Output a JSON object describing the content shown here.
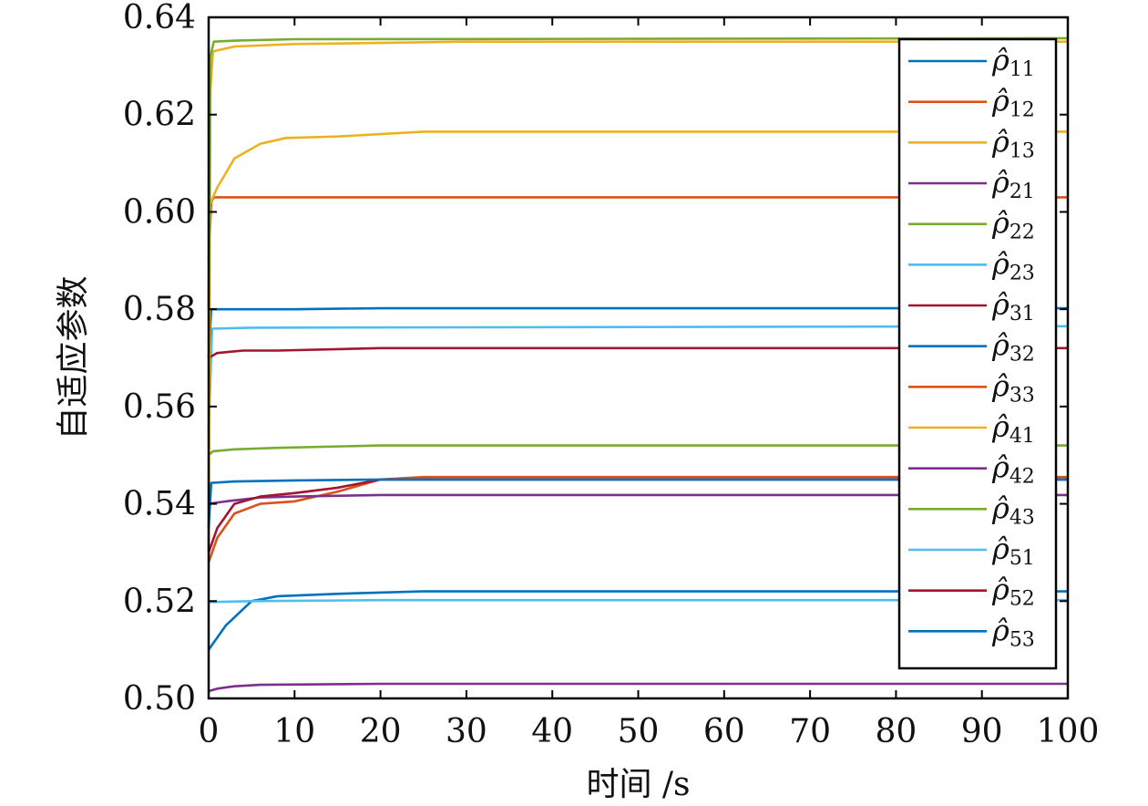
{
  "chart_data": {
    "type": "line",
    "title": "",
    "xlabel": "时间 /s",
    "ylabel": "自适应参数",
    "xlim": [
      0,
      100
    ],
    "ylim": [
      0.5,
      0.64
    ],
    "xticks": [
      "0",
      "10",
      "20",
      "30",
      "40",
      "50",
      "60",
      "70",
      "80",
      "90",
      "100"
    ],
    "yticks": [
      "0.50",
      "0.52",
      "0.54",
      "0.56",
      "0.58",
      "0.60",
      "0.62",
      "0.64"
    ],
    "grid": false,
    "legend_position": "top-right",
    "series": [
      {
        "name": "ρ̂11",
        "sub": "11",
        "color": "#0072BD",
        "x": [
          0,
          2,
          5,
          8,
          15,
          25,
          100
        ],
        "y": [
          0.51,
          0.515,
          0.52,
          0.521,
          0.5215,
          0.522,
          0.522
        ]
      },
      {
        "name": "ρ̂12",
        "sub": "12",
        "color": "#D95319",
        "x": [
          0,
          0.3,
          0.6,
          10,
          100
        ],
        "y": [
          0.59,
          0.602,
          0.603,
          0.603,
          0.603
        ]
      },
      {
        "name": "ρ̂13",
        "sub": "13",
        "color": "#EDB120",
        "x": [
          0,
          1,
          3,
          6,
          9,
          15,
          25,
          100
        ],
        "y": [
          0.601,
          0.605,
          0.611,
          0.614,
          0.6152,
          0.6155,
          0.6165,
          0.6165
        ]
      },
      {
        "name": "ρ̂21",
        "sub": "21",
        "color": "#7E2F8E",
        "x": [
          0,
          1,
          3,
          6,
          20,
          100
        ],
        "y": [
          0.5015,
          0.502,
          0.5025,
          0.5028,
          0.503,
          0.503
        ]
      },
      {
        "name": "ρ̂22",
        "sub": "22",
        "color": "#77AC30",
        "x": [
          0,
          0.5,
          3,
          8,
          20,
          100
        ],
        "y": [
          0.55,
          0.5508,
          0.5512,
          0.5515,
          0.552,
          0.552
        ]
      },
      {
        "name": "ρ̂23",
        "sub": "23",
        "color": "#4DBEEE",
        "x": [
          0,
          0.4,
          5,
          100
        ],
        "y": [
          0.555,
          0.576,
          0.5762,
          0.5765
        ]
      },
      {
        "name": "ρ̂31",
        "sub": "31",
        "color": "#A2142F",
        "x": [
          0,
          1,
          4,
          8,
          20,
          100
        ],
        "y": [
          0.57,
          0.571,
          0.5715,
          0.5715,
          0.572,
          0.572
        ]
      },
      {
        "name": "ρ̂32",
        "sub": "32",
        "color": "#0072BD",
        "x": [
          0,
          0.3,
          3,
          10,
          20,
          100
        ],
        "y": [
          0.57,
          0.58,
          0.58,
          0.58,
          0.5802,
          0.5802
        ]
      },
      {
        "name": "ρ̂33",
        "sub": "33",
        "color": "#D95319",
        "x": [
          0,
          1,
          3,
          6,
          10,
          15,
          20,
          25,
          100
        ],
        "y": [
          0.528,
          0.533,
          0.538,
          0.54,
          0.5405,
          0.5425,
          0.545,
          0.5455,
          0.5455
        ]
      },
      {
        "name": "ρ̂41",
        "sub": "41",
        "color": "#EDB120",
        "x": [
          0,
          0.2,
          0.5,
          3,
          10,
          30,
          100
        ],
        "y": [
          0.53,
          0.625,
          0.633,
          0.634,
          0.6345,
          0.635,
          0.635
        ]
      },
      {
        "name": "ρ̂42",
        "sub": "42",
        "color": "#7E2F8E",
        "x": [
          0,
          2,
          6,
          10,
          20,
          100
        ],
        "y": [
          0.54,
          0.5405,
          0.5413,
          0.5415,
          0.5418,
          0.5418
        ]
      },
      {
        "name": "ρ̂43",
        "sub": "43",
        "color": "#77AC30",
        "x": [
          0,
          0.2,
          0.6,
          3,
          10,
          100
        ],
        "y": [
          0.58,
          0.632,
          0.635,
          0.6352,
          0.6355,
          0.6357
        ]
      },
      {
        "name": "ρ̂51",
        "sub": "51",
        "color": "#4DBEEE",
        "x": [
          0,
          5,
          20,
          100
        ],
        "y": [
          0.5198,
          0.52,
          0.5202,
          0.5202
        ]
      },
      {
        "name": "ρ̂52",
        "sub": "52",
        "color": "#A2142F",
        "x": [
          0,
          1,
          3,
          6,
          10,
          15,
          20,
          25,
          100
        ],
        "y": [
          0.53,
          0.535,
          0.54,
          0.5415,
          0.5422,
          0.5433,
          0.545,
          0.545,
          0.545
        ]
      },
      {
        "name": "ρ̂53",
        "sub": "53",
        "color": "#0072BD",
        "x": [
          0,
          0.3,
          3,
          10,
          20,
          100
        ],
        "y": [
          0.535,
          0.5443,
          0.5446,
          0.5448,
          0.545,
          0.545
        ]
      }
    ]
  }
}
